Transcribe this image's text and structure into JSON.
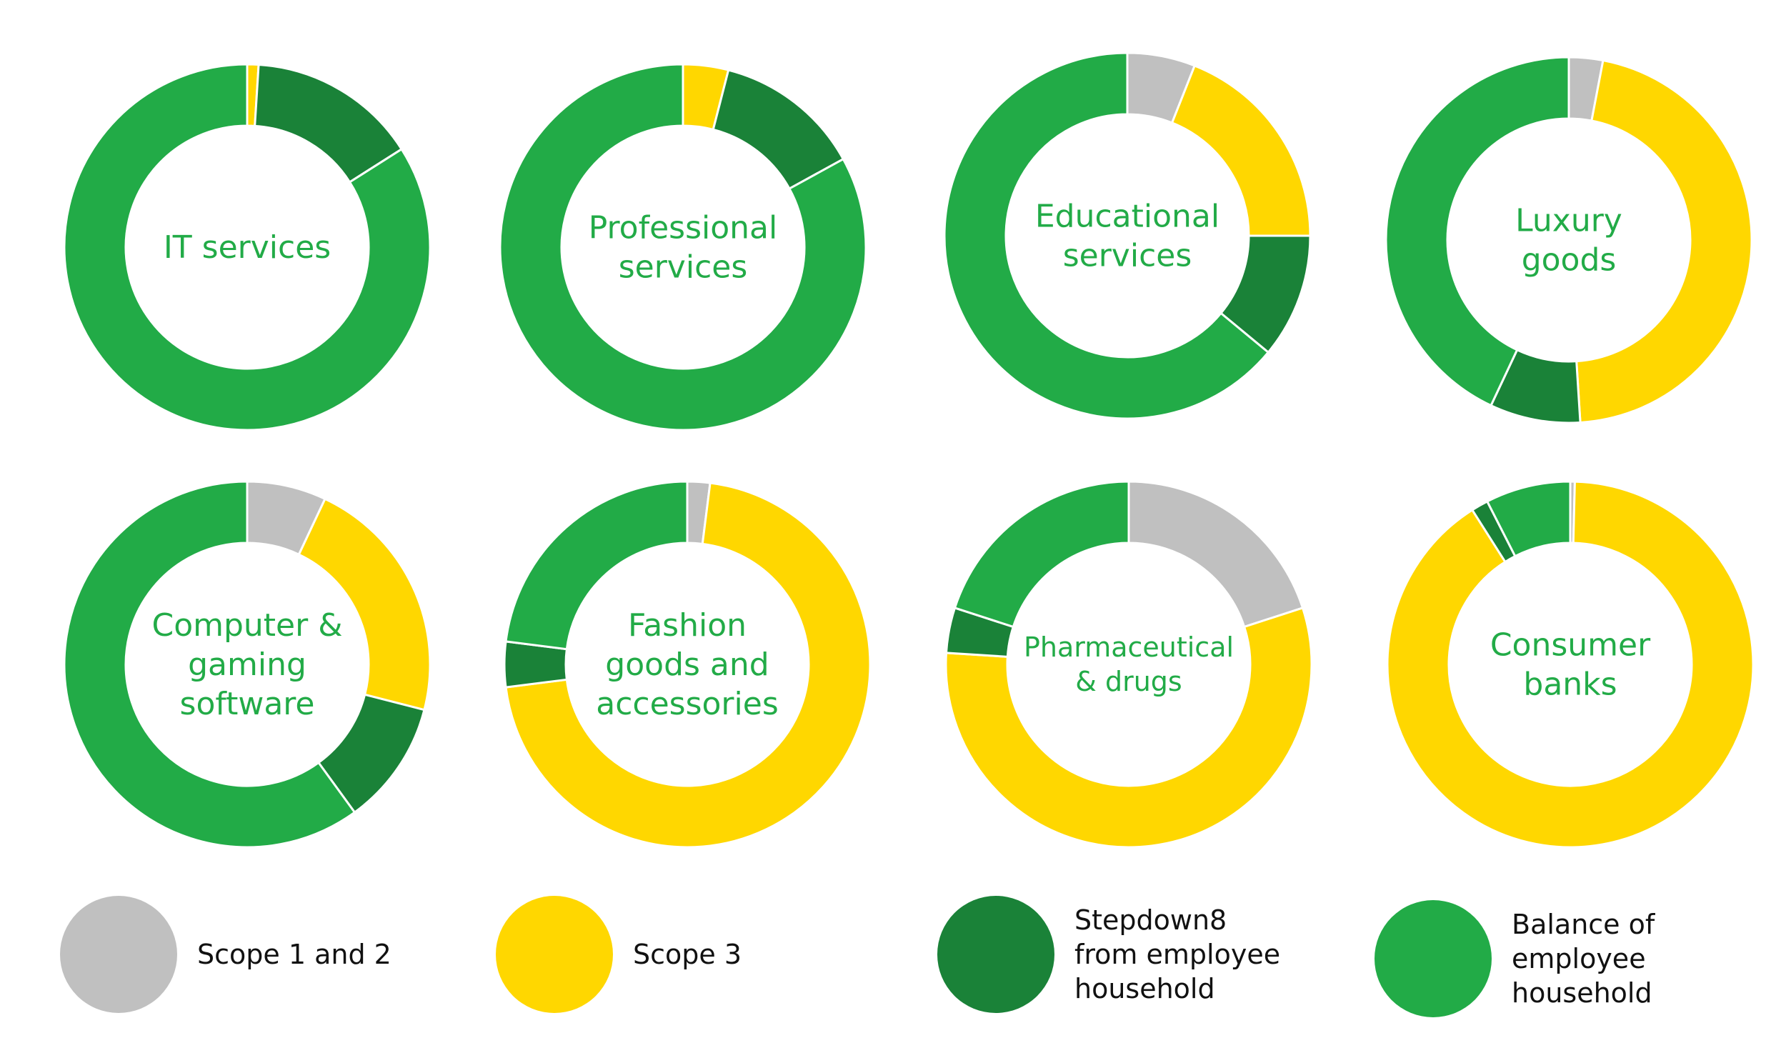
{
  "chart_data": {
    "type": "pie",
    "style": "donut",
    "colors": {
      "Scope 1 and 2": "#c0c0c0",
      "Scope 3": "#ffd700",
      "Stepdown8 from employee household": "#1a8238",
      "Balance of employee household": "#22ab47"
    },
    "legend": [
      {
        "key": "Scope 1 and 2",
        "lines": [
          "Scope 1 and 2"
        ]
      },
      {
        "key": "Scope 3",
        "lines": [
          "Scope 3"
        ]
      },
      {
        "key": "Stepdown8 from employee household",
        "lines": [
          "Stepdown8",
          "from employee",
          "household"
        ]
      },
      {
        "key": "Balance of employee household",
        "lines": [
          "Balance of",
          "employee",
          "household"
        ]
      }
    ],
    "charts": [
      {
        "label": [
          "IT services"
        ],
        "slices": [
          {
            "name": "Scope 1 and 2",
            "value": 0
          },
          {
            "name": "Scope 3",
            "value": 1
          },
          {
            "name": "Stepdown8 from employee household",
            "value": 15
          },
          {
            "name": "Balance of employee household",
            "value": 84
          }
        ]
      },
      {
        "label": [
          "Professional",
          "services"
        ],
        "slices": [
          {
            "name": "Scope 1 and 2",
            "value": 0
          },
          {
            "name": "Scope 3",
            "value": 4
          },
          {
            "name": "Stepdown8 from employee household",
            "value": 13
          },
          {
            "name": "Balance of employee household",
            "value": 83
          }
        ]
      },
      {
        "label": [
          "Educational",
          "services"
        ],
        "slices": [
          {
            "name": "Scope 1 and 2",
            "value": 6
          },
          {
            "name": "Scope 3",
            "value": 19
          },
          {
            "name": "Stepdown8 from employee household",
            "value": 11
          },
          {
            "name": "Balance of employee household",
            "value": 64
          }
        ]
      },
      {
        "label": [
          "Luxury",
          "goods"
        ],
        "slices": [
          {
            "name": "Scope 1 and 2",
            "value": 3
          },
          {
            "name": "Scope 3",
            "value": 46
          },
          {
            "name": "Stepdown8 from employee household",
            "value": 8
          },
          {
            "name": "Balance of employee household",
            "value": 43
          }
        ]
      },
      {
        "label": [
          "Computer &",
          "gaming",
          "software"
        ],
        "slices": [
          {
            "name": "Scope 1 and 2",
            "value": 7
          },
          {
            "name": "Scope 3",
            "value": 22
          },
          {
            "name": "Stepdown8 from employee household",
            "value": 11
          },
          {
            "name": "Balance of employee household",
            "value": 60
          }
        ]
      },
      {
        "label": [
          "Fashion",
          "goods and",
          "accessories"
        ],
        "slices": [
          {
            "name": "Scope 1 and 2",
            "value": 2
          },
          {
            "name": "Scope 3",
            "value": 71
          },
          {
            "name": "Stepdown8 from employee household",
            "value": 4
          },
          {
            "name": "Balance of employee household",
            "value": 23
          }
        ]
      },
      {
        "label": [
          "Pharmaceutical",
          "& drugs"
        ],
        "slices": [
          {
            "name": "Scope 1 and 2",
            "value": 20
          },
          {
            "name": "Scope 3",
            "value": 56
          },
          {
            "name": "Stepdown8 from employee household",
            "value": 4
          },
          {
            "name": "Balance of employee household",
            "value": 20
          }
        ]
      },
      {
        "label": [
          "Consumer",
          "banks"
        ],
        "slices": [
          {
            "name": "Scope 1 and 2",
            "value": 0.4
          },
          {
            "name": "Scope 3",
            "value": 90.6
          },
          {
            "name": "Stepdown8 from employee household",
            "value": 1.5
          },
          {
            "name": "Balance of employee household",
            "value": 7.5
          }
        ]
      }
    ]
  }
}
